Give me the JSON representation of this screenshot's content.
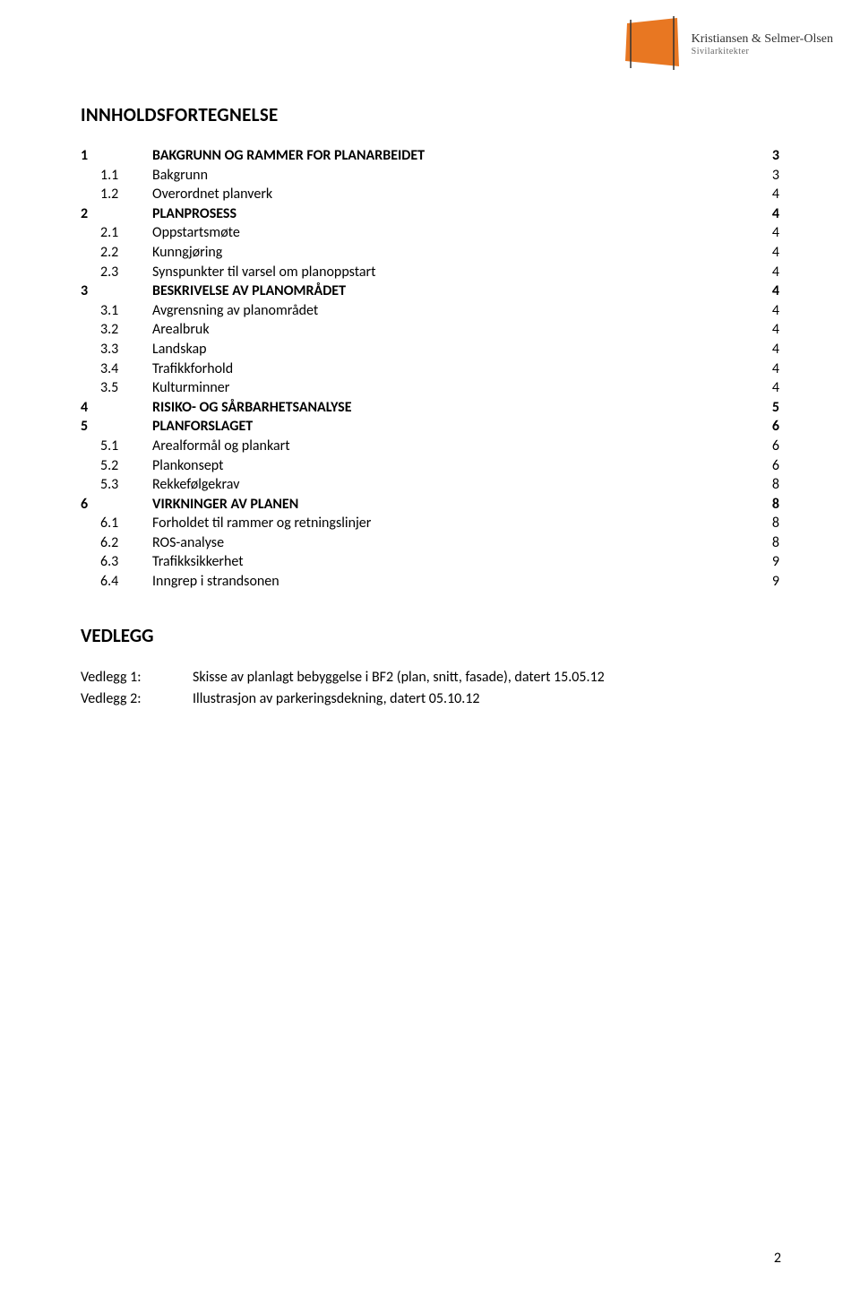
{
  "logo": {
    "main": "Kristiansen & Selmer-Olsen",
    "sub": "Sivilarkitekter",
    "fill": "#e87722",
    "stroke": "#333333"
  },
  "title": "INNHOLDSFORTEGNELSE",
  "toc": [
    {
      "num": "1",
      "sub": "",
      "label": "BAKGRUNN OG RAMMER FOR PLANARBEIDET",
      "page": "3",
      "bold": true
    },
    {
      "num": "",
      "sub": "1.1",
      "label": "Bakgrunn",
      "page": "3",
      "bold": false
    },
    {
      "num": "",
      "sub": "1.2",
      "label": "Overordnet planverk",
      "page": "4",
      "bold": false
    },
    {
      "num": "2",
      "sub": "",
      "label": "PLANPROSESS",
      "page": "4",
      "bold": true
    },
    {
      "num": "",
      "sub": "2.1",
      "label": "Oppstartsmøte",
      "page": "4",
      "bold": false
    },
    {
      "num": "",
      "sub": "2.2",
      "label": "Kunngjøring",
      "page": "4",
      "bold": false
    },
    {
      "num": "",
      "sub": "2.3",
      "label": "Synspunkter til varsel om planoppstart",
      "page": "4",
      "bold": false
    },
    {
      "num": "3",
      "sub": "",
      "label": "BESKRIVELSE AV PLANOMRÅDET",
      "page": "4",
      "bold": true
    },
    {
      "num": "",
      "sub": "3.1",
      "label": "Avgrensning av planområdet",
      "page": "4",
      "bold": false
    },
    {
      "num": "",
      "sub": "3.2",
      "label": "Arealbruk",
      "page": "4",
      "bold": false
    },
    {
      "num": "",
      "sub": "3.3",
      "label": "Landskap",
      "page": "4",
      "bold": false
    },
    {
      "num": "",
      "sub": "3.4",
      "label": "Trafikkforhold",
      "page": "4",
      "bold": false
    },
    {
      "num": "",
      "sub": "3.5",
      "label": "Kulturminner",
      "page": "4",
      "bold": false
    },
    {
      "num": "4",
      "sub": "",
      "label": "RISIKO- OG SÅRBARHETSANALYSE",
      "page": "5",
      "bold": true
    },
    {
      "num": "5",
      "sub": "",
      "label": "PLANFORSLAGET",
      "page": "6",
      "bold": true
    },
    {
      "num": "",
      "sub": "5.1",
      "label": "Arealformål og plankart",
      "page": "6",
      "bold": false
    },
    {
      "num": "",
      "sub": "5.2",
      "label": "Plankonsept",
      "page": "6",
      "bold": false
    },
    {
      "num": "",
      "sub": "5.3",
      "label": "Rekkefølgekrav",
      "page": "8",
      "bold": false
    },
    {
      "num": "6",
      "sub": "",
      "label": "VIRKNINGER AV PLANEN",
      "page": "8",
      "bold": true
    },
    {
      "num": "",
      "sub": "6.1",
      "label": "Forholdet til rammer og retningslinjer",
      "page": "8",
      "bold": false
    },
    {
      "num": "",
      "sub": "6.2",
      "label": "ROS-analyse",
      "page": "8",
      "bold": false
    },
    {
      "num": "",
      "sub": "6.3",
      "label": "Trafikksikkerhet",
      "page": "9",
      "bold": false
    },
    {
      "num": "",
      "sub": "6.4",
      "label": "Inngrep i strandsonen",
      "page": "9",
      "bold": false
    }
  ],
  "vedlegg": {
    "title": "VEDLEGG",
    "items": [
      {
        "label": "Vedlegg 1:",
        "text": "Skisse av planlagt bebyggelse i BF2 (plan, snitt, fasade), datert 15.05.12"
      },
      {
        "label": "Vedlegg 2:",
        "text": "Illustrasjon av parkeringsdekning, datert 05.10.12"
      }
    ]
  },
  "pageNumber": "2"
}
